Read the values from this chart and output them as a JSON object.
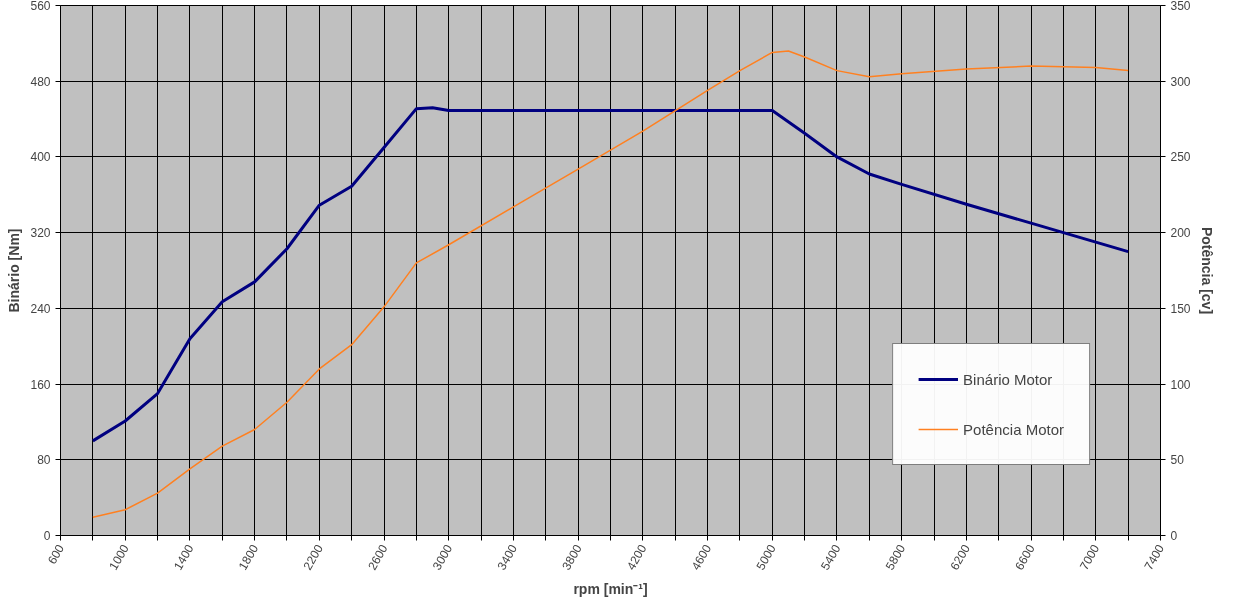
{
  "chart_data": {
    "type": "line",
    "xlabel": "rpm [min⁻¹]",
    "ylabel": "Binário [Nm]",
    "y2label": "Potência [cv]",
    "xlim": [
      600,
      7400
    ],
    "xticks": [
      600,
      {
        "value": 800,
        "label": null
      },
      1000,
      {
        "value": 1200,
        "label": null
      },
      1400,
      {
        "value": 1600,
        "label": null
      },
      1800,
      {
        "value": 2000,
        "label": null
      },
      2200,
      {
        "value": 2400,
        "label": null
      },
      2600,
      {
        "value": 2800,
        "label": null
      },
      3000,
      {
        "value": 3200,
        "label": null
      },
      3400,
      {
        "value": 3600,
        "label": null
      },
      3800,
      {
        "value": 4000,
        "label": null
      },
      4200,
      {
        "value": 4400,
        "label": null
      },
      4600,
      {
        "value": 4800,
        "label": null
      },
      5000,
      {
        "value": 5200,
        "label": null
      },
      5400,
      {
        "value": 5600,
        "label": null
      },
      5800,
      {
        "value": 6000,
        "label": null
      },
      6200,
      {
        "value": 6400,
        "label": null
      },
      6600,
      {
        "value": 6800,
        "label": null
      },
      7000,
      {
        "value": 7200,
        "label": null
      },
      7400
    ],
    "ylim": [
      0,
      560
    ],
    "yticks": [
      0,
      80,
      160,
      240,
      320,
      400,
      480,
      560
    ],
    "y2lim": [
      0,
      350
    ],
    "y2ticks": [
      0,
      50,
      100,
      150,
      200,
      250,
      300,
      350
    ],
    "grid": true,
    "legend": "bottom right",
    "line_style": "solid",
    "series": [
      {
        "name": "Binário Motor",
        "color": "#000080",
        "x": [
          800,
          1000,
          1200,
          1400,
          1600,
          1800,
          2000,
          2200,
          2400,
          2600,
          2800,
          2900,
          3000,
          4900,
          5000,
          5200,
          5400,
          5600,
          5800,
          6200,
          6600,
          7200
        ],
        "values": [
          100,
          121,
          150,
          208,
          247,
          268,
          303,
          349,
          369,
          410,
          451,
          452,
          449,
          449,
          449,
          425,
          400,
          382,
          371,
          350,
          330,
          300
        ]
      },
      {
        "name": "Potência Motor",
        "color": "#ff8020",
        "axis": "y2",
        "x": [
          800,
          1000,
          1200,
          1400,
          1600,
          1800,
          2000,
          2200,
          2400,
          2600,
          2800,
          3000,
          3400,
          3800,
          4200,
          4600,
          4800,
          5000,
          5100,
          5200,
          5400,
          5600,
          5800,
          6200,
          6600,
          7000,
          7200
        ],
        "values": [
          12,
          17,
          28,
          44,
          59,
          70,
          88,
          110,
          126,
          151,
          180,
          192,
          217,
          242,
          267,
          294,
          307,
          319,
          320,
          316,
          307,
          303,
          305,
          308,
          310,
          309,
          307
        ]
      }
    ]
  }
}
